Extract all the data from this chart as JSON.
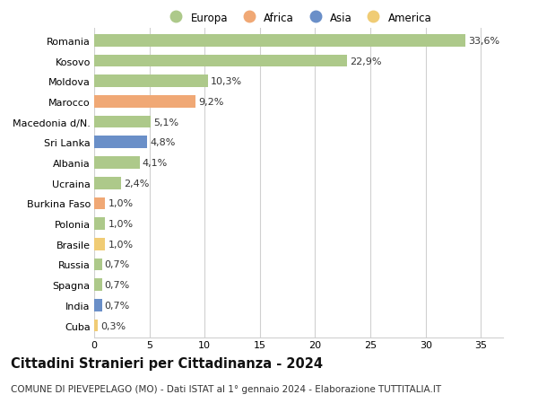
{
  "countries": [
    "Romania",
    "Kosovo",
    "Moldova",
    "Marocco",
    "Macedonia d/N.",
    "Sri Lanka",
    "Albania",
    "Ucraina",
    "Burkina Faso",
    "Polonia",
    "Brasile",
    "Russia",
    "Spagna",
    "India",
    "Cuba"
  ],
  "values": [
    33.6,
    22.9,
    10.3,
    9.2,
    5.1,
    4.8,
    4.1,
    2.4,
    1.0,
    1.0,
    1.0,
    0.7,
    0.7,
    0.7,
    0.3
  ],
  "labels": [
    "33,6%",
    "22,9%",
    "10,3%",
    "9,2%",
    "5,1%",
    "4,8%",
    "4,1%",
    "2,4%",
    "1,0%",
    "1,0%",
    "1,0%",
    "0,7%",
    "0,7%",
    "0,7%",
    "0,3%"
  ],
  "continents": [
    "Europa",
    "Europa",
    "Europa",
    "Africa",
    "Europa",
    "Asia",
    "Europa",
    "Europa",
    "Africa",
    "Europa",
    "America",
    "Europa",
    "Europa",
    "Asia",
    "America"
  ],
  "colors": {
    "Europa": "#adc98a",
    "Africa": "#f0a875",
    "Asia": "#6a8fc8",
    "America": "#f0cc75"
  },
  "xlim": [
    0,
    37
  ],
  "xticks": [
    0,
    5,
    10,
    15,
    20,
    25,
    30,
    35
  ],
  "title": "Cittadini Stranieri per Cittadinanza - 2024",
  "subtitle": "COMUNE DI PIEVEPELAGO (MO) - Dati ISTAT al 1° gennaio 2024 - Elaborazione TUTTITALIA.IT",
  "bg_color": "#ffffff",
  "grid_color": "#d0d0d0",
  "bar_height": 0.6,
  "label_fontsize": 8,
  "tick_fontsize": 8,
  "title_fontsize": 10.5,
  "subtitle_fontsize": 7.5
}
